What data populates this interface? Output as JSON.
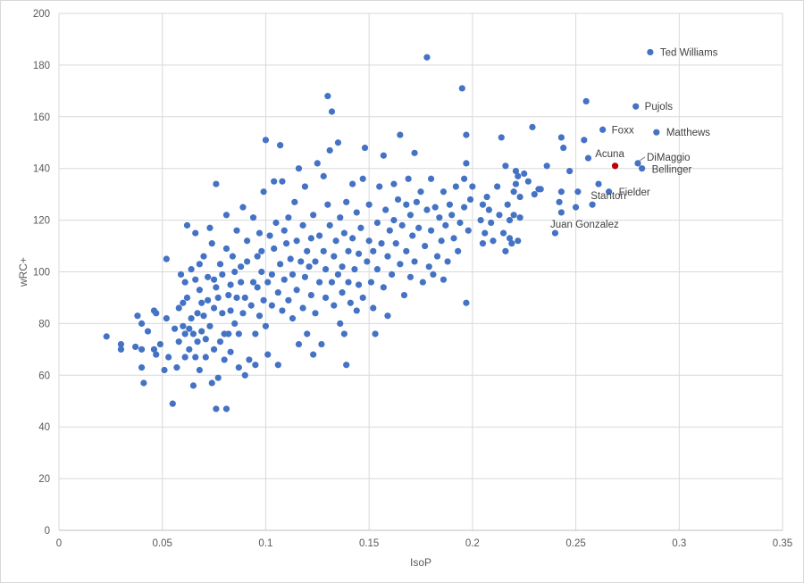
{
  "chart_data": {
    "type": "scatter",
    "xlabel": "IsoP",
    "ylabel": "wRC+",
    "xlim": [
      0,
      0.35
    ],
    "ylim": [
      0,
      200
    ],
    "x_ticks": [
      "0",
      "0.05",
      "0.1",
      "0.15",
      "0.2",
      "0.25",
      "0.3",
      "0.35"
    ],
    "y_ticks": [
      "0",
      "20",
      "40",
      "60",
      "80",
      "100",
      "120",
      "140",
      "160",
      "180",
      "200"
    ],
    "grid": true,
    "legend": "none",
    "colors": {
      "points": "#4472c4",
      "highlight": "#c00000",
      "grid": "#d9d9d9"
    },
    "labeled_points": [
      {
        "name": "Ted Williams",
        "x": 0.286,
        "y": 185
      },
      {
        "name": "Pujols",
        "x": 0.279,
        "y": 164
      },
      {
        "name": "Foxx",
        "x": 0.263,
        "y": 155
      },
      {
        "name": "Matthews",
        "x": 0.289,
        "y": 154
      },
      {
        "name": "Acuna",
        "x": 0.269,
        "y": 141
      },
      {
        "name": "DiMaggio",
        "x": 0.28,
        "y": 142
      },
      {
        "name": "Bellinger",
        "x": 0.282,
        "y": 140
      },
      {
        "name": "Stanton",
        "x": 0.261,
        "y": 134
      },
      {
        "name": "Fielder",
        "x": 0.266,
        "y": 131
      },
      {
        "name": "Juan Gonzalez",
        "x": 0.243,
        "y": 123
      }
    ],
    "highlight_point": {
      "name": "Acuna",
      "x": 0.269,
      "y": 141
    },
    "points": [
      [
        0.023,
        75
      ],
      [
        0.03,
        72
      ],
      [
        0.03,
        70
      ],
      [
        0.037,
        71
      ],
      [
        0.038,
        83
      ],
      [
        0.04,
        63
      ],
      [
        0.04,
        80
      ],
      [
        0.04,
        70
      ],
      [
        0.041,
        57
      ],
      [
        0.043,
        77
      ],
      [
        0.046,
        85
      ],
      [
        0.046,
        70
      ],
      [
        0.047,
        68
      ],
      [
        0.047,
        84
      ],
      [
        0.049,
        72
      ],
      [
        0.051,
        62
      ],
      [
        0.052,
        105
      ],
      [
        0.052,
        82
      ],
      [
        0.053,
        67
      ],
      [
        0.055,
        49
      ],
      [
        0.056,
        78
      ],
      [
        0.057,
        63
      ],
      [
        0.058,
        86
      ],
      [
        0.058,
        73
      ],
      [
        0.059,
        99
      ],
      [
        0.06,
        88
      ],
      [
        0.06,
        79
      ],
      [
        0.061,
        96
      ],
      [
        0.061,
        76
      ],
      [
        0.061,
        67
      ],
      [
        0.062,
        118
      ],
      [
        0.062,
        90
      ],
      [
        0.063,
        78
      ],
      [
        0.063,
        70
      ],
      [
        0.064,
        101
      ],
      [
        0.064,
        82
      ],
      [
        0.065,
        56
      ],
      [
        0.065,
        76
      ],
      [
        0.066,
        115
      ],
      [
        0.066,
        97
      ],
      [
        0.066,
        67
      ],
      [
        0.067,
        84
      ],
      [
        0.067,
        73
      ],
      [
        0.068,
        103
      ],
      [
        0.068,
        93
      ],
      [
        0.068,
        62
      ],
      [
        0.069,
        88
      ],
      [
        0.069,
        77
      ],
      [
        0.07,
        106
      ],
      [
        0.07,
        83
      ],
      [
        0.071,
        74
      ],
      [
        0.071,
        67
      ],
      [
        0.072,
        98
      ],
      [
        0.072,
        89
      ],
      [
        0.073,
        117
      ],
      [
        0.073,
        79
      ],
      [
        0.074,
        111
      ],
      [
        0.074,
        57
      ],
      [
        0.075,
        97
      ],
      [
        0.075,
        86
      ],
      [
        0.075,
        70
      ],
      [
        0.076,
        47
      ],
      [
        0.076,
        134
      ],
      [
        0.076,
        94
      ],
      [
        0.077,
        90
      ],
      [
        0.077,
        59
      ],
      [
        0.078,
        73
      ],
      [
        0.078,
        103
      ],
      [
        0.079,
        99
      ],
      [
        0.079,
        84
      ],
      [
        0.08,
        76
      ],
      [
        0.08,
        66
      ],
      [
        0.081,
        122
      ],
      [
        0.081,
        47
      ],
      [
        0.081,
        109
      ],
      [
        0.082,
        91
      ],
      [
        0.082,
        76
      ],
      [
        0.083,
        95
      ],
      [
        0.083,
        85
      ],
      [
        0.083,
        69
      ],
      [
        0.084,
        106
      ],
      [
        0.085,
        100
      ],
      [
        0.085,
        80
      ],
      [
        0.086,
        116
      ],
      [
        0.086,
        90
      ],
      [
        0.087,
        76
      ],
      [
        0.087,
        63
      ],
      [
        0.088,
        102
      ],
      [
        0.088,
        96
      ],
      [
        0.089,
        84
      ],
      [
        0.089,
        125
      ],
      [
        0.09,
        60
      ],
      [
        0.09,
        90
      ],
      [
        0.091,
        112
      ],
      [
        0.091,
        104
      ],
      [
        0.092,
        66
      ],
      [
        0.093,
        87
      ],
      [
        0.094,
        96
      ],
      [
        0.094,
        121
      ],
      [
        0.095,
        76
      ],
      [
        0.095,
        64
      ],
      [
        0.096,
        106
      ],
      [
        0.096,
        94
      ],
      [
        0.097,
        115
      ],
      [
        0.097,
        83
      ],
      [
        0.098,
        108
      ],
      [
        0.098,
        100
      ],
      [
        0.099,
        131
      ],
      [
        0.099,
        89
      ],
      [
        0.1,
        151
      ],
      [
        0.1,
        79
      ],
      [
        0.101,
        68
      ],
      [
        0.101,
        96
      ],
      [
        0.102,
        114
      ],
      [
        0.103,
        99
      ],
      [
        0.103,
        87
      ],
      [
        0.104,
        135
      ],
      [
        0.104,
        109
      ],
      [
        0.105,
        119
      ],
      [
        0.106,
        64
      ],
      [
        0.106,
        92
      ],
      [
        0.107,
        149
      ],
      [
        0.107,
        103
      ],
      [
        0.108,
        135
      ],
      [
        0.108,
        85
      ],
      [
        0.109,
        97
      ],
      [
        0.109,
        116
      ],
      [
        0.11,
        111
      ],
      [
        0.111,
        89
      ],
      [
        0.111,
        121
      ],
      [
        0.112,
        105
      ],
      [
        0.113,
        99
      ],
      [
        0.113,
        82
      ],
      [
        0.114,
        127
      ],
      [
        0.115,
        112
      ],
      [
        0.115,
        93
      ],
      [
        0.116,
        140
      ],
      [
        0.116,
        72
      ],
      [
        0.117,
        104
      ],
      [
        0.118,
        86
      ],
      [
        0.118,
        118
      ],
      [
        0.119,
        133
      ],
      [
        0.119,
        98
      ],
      [
        0.12,
        76
      ],
      [
        0.12,
        108
      ],
      [
        0.121,
        102
      ],
      [
        0.122,
        113
      ],
      [
        0.122,
        91
      ],
      [
        0.123,
        68
      ],
      [
        0.123,
        122
      ],
      [
        0.124,
        104
      ],
      [
        0.124,
        84
      ],
      [
        0.125,
        142
      ],
      [
        0.126,
        96
      ],
      [
        0.126,
        114
      ],
      [
        0.127,
        72
      ],
      [
        0.128,
        137
      ],
      [
        0.128,
        108
      ],
      [
        0.129,
        90
      ],
      [
        0.129,
        101
      ],
      [
        0.13,
        168
      ],
      [
        0.13,
        126
      ],
      [
        0.131,
        147
      ],
      [
        0.131,
        118
      ],
      [
        0.132,
        162
      ],
      [
        0.132,
        96
      ],
      [
        0.133,
        106
      ],
      [
        0.133,
        87
      ],
      [
        0.134,
        112
      ],
      [
        0.135,
        150
      ],
      [
        0.135,
        99
      ],
      [
        0.136,
        80
      ],
      [
        0.136,
        121
      ],
      [
        0.137,
        92
      ],
      [
        0.137,
        102
      ],
      [
        0.138,
        115
      ],
      [
        0.138,
        76
      ],
      [
        0.139,
        64
      ],
      [
        0.139,
        127
      ],
      [
        0.14,
        108
      ],
      [
        0.14,
        96
      ],
      [
        0.141,
        88
      ],
      [
        0.142,
        134
      ],
      [
        0.142,
        113
      ],
      [
        0.143,
        101
      ],
      [
        0.144,
        123
      ],
      [
        0.144,
        85
      ],
      [
        0.145,
        107
      ],
      [
        0.145,
        95
      ],
      [
        0.146,
        117
      ],
      [
        0.147,
        136
      ],
      [
        0.147,
        90
      ],
      [
        0.148,
        148
      ],
      [
        0.149,
        104
      ],
      [
        0.15,
        112
      ],
      [
        0.15,
        126
      ],
      [
        0.151,
        96
      ],
      [
        0.152,
        108
      ],
      [
        0.152,
        86
      ],
      [
        0.153,
        76
      ],
      [
        0.154,
        119
      ],
      [
        0.154,
        101
      ],
      [
        0.155,
        133
      ],
      [
        0.156,
        111
      ],
      [
        0.157,
        145
      ],
      [
        0.157,
        94
      ],
      [
        0.158,
        124
      ],
      [
        0.159,
        83
      ],
      [
        0.159,
        106
      ],
      [
        0.16,
        116
      ],
      [
        0.161,
        99
      ],
      [
        0.162,
        134
      ],
      [
        0.162,
        120
      ],
      [
        0.163,
        111
      ],
      [
        0.164,
        128
      ],
      [
        0.165,
        153
      ],
      [
        0.165,
        103
      ],
      [
        0.166,
        118
      ],
      [
        0.167,
        91
      ],
      [
        0.168,
        126
      ],
      [
        0.168,
        108
      ],
      [
        0.169,
        136
      ],
      [
        0.17,
        98
      ],
      [
        0.17,
        122
      ],
      [
        0.171,
        114
      ],
      [
        0.172,
        146
      ],
      [
        0.172,
        104
      ],
      [
        0.173,
        127
      ],
      [
        0.174,
        117
      ],
      [
        0.175,
        131
      ],
      [
        0.176,
        96
      ],
      [
        0.177,
        110
      ],
      [
        0.178,
        183
      ],
      [
        0.178,
        124
      ],
      [
        0.179,
        102
      ],
      [
        0.18,
        136
      ],
      [
        0.18,
        116
      ],
      [
        0.181,
        99
      ],
      [
        0.182,
        125
      ],
      [
        0.183,
        106
      ],
      [
        0.184,
        121
      ],
      [
        0.185,
        112
      ],
      [
        0.186,
        131
      ],
      [
        0.186,
        97
      ],
      [
        0.187,
        118
      ],
      [
        0.188,
        104
      ],
      [
        0.189,
        126
      ],
      [
        0.19,
        122
      ],
      [
        0.191,
        113
      ],
      [
        0.192,
        133
      ],
      [
        0.193,
        108
      ],
      [
        0.194,
        119
      ],
      [
        0.195,
        171
      ],
      [
        0.196,
        136
      ],
      [
        0.196,
        125
      ],
      [
        0.197,
        153
      ],
      [
        0.197,
        88
      ],
      [
        0.197,
        142
      ],
      [
        0.198,
        116
      ],
      [
        0.199,
        128
      ],
      [
        0.2,
        133
      ],
      [
        0.204,
        120
      ],
      [
        0.205,
        126
      ],
      [
        0.205,
        111
      ],
      [
        0.206,
        115
      ],
      [
        0.207,
        129
      ],
      [
        0.208,
        124
      ],
      [
        0.209,
        119
      ],
      [
        0.21,
        112
      ],
      [
        0.212,
        133
      ],
      [
        0.213,
        122
      ],
      [
        0.214,
        152
      ],
      [
        0.215,
        115
      ],
      [
        0.216,
        141
      ],
      [
        0.216,
        108
      ],
      [
        0.217,
        126
      ],
      [
        0.218,
        120
      ],
      [
        0.218,
        113
      ],
      [
        0.219,
        111
      ],
      [
        0.22,
        122
      ],
      [
        0.22,
        131
      ],
      [
        0.221,
        139
      ],
      [
        0.221,
        134
      ],
      [
        0.222,
        137
      ],
      [
        0.222,
        112
      ],
      [
        0.223,
        129
      ],
      [
        0.223,
        121
      ],
      [
        0.225,
        138
      ],
      [
        0.227,
        135
      ],
      [
        0.229,
        156
      ],
      [
        0.23,
        130
      ],
      [
        0.232,
        132
      ],
      [
        0.233,
        132
      ],
      [
        0.236,
        141
      ],
      [
        0.24,
        115
      ],
      [
        0.242,
        127
      ],
      [
        0.243,
        152
      ],
      [
        0.243,
        131
      ],
      [
        0.244,
        148
      ],
      [
        0.247,
        139
      ],
      [
        0.25,
        125
      ],
      [
        0.251,
        131
      ],
      [
        0.254,
        151
      ],
      [
        0.255,
        166
      ],
      [
        0.256,
        144
      ],
      [
        0.258,
        126
      ]
    ]
  }
}
